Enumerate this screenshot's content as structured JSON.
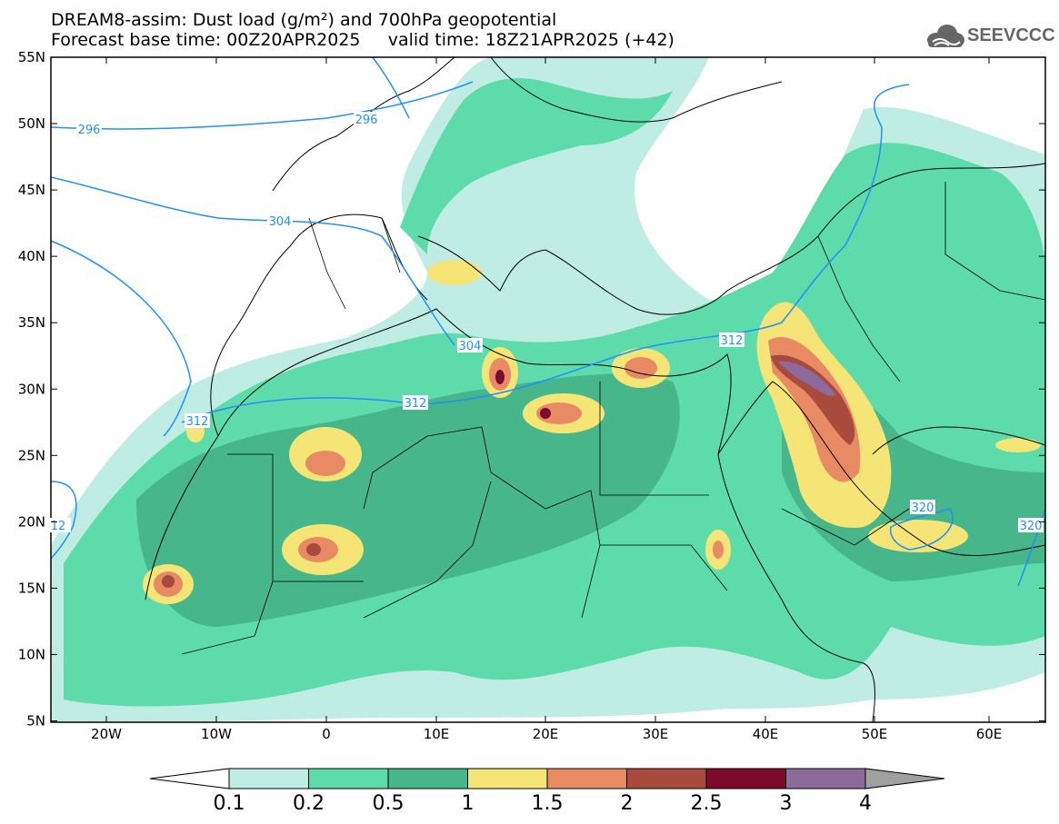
{
  "header": {
    "title_line1": "DREAM8-assim: Dust load (g/m²) and 700hPa geopotential",
    "title_line2": "Forecast base time: 00Z20APR2025     valid time: 18Z21APR2025 (+42)",
    "logo_text": "SEEVCCC",
    "logo_icon": "cloud-icon"
  },
  "map": {
    "lon_labels": [
      "20W",
      "10W",
      "0",
      "10E",
      "20E",
      "30E",
      "40E",
      "50E",
      "60E"
    ],
    "lat_labels": [
      "55N",
      "50N",
      "45N",
      "40N",
      "35N",
      "30N",
      "25N",
      "20N",
      "15N",
      "10N",
      "5N"
    ],
    "contour_labels": [
      "296",
      "296",
      "304",
      "304",
      "312",
      "312",
      "312",
      "320",
      "320",
      "12"
    ],
    "colors": {
      "land_bg": "#ffffff",
      "border": "#000000",
      "geopotential": "#1e90ff"
    }
  },
  "legend": {
    "labels": [
      "0.1",
      "0.2",
      "0.5",
      "1",
      "1.5",
      "2",
      "2.5",
      "3",
      "4"
    ],
    "colors": [
      "#c0ede3",
      "#5ddbaa",
      "#47b68a",
      "#f5e577",
      "#e88a64",
      "#a84a3e",
      "#7c0b2e",
      "#8c6a9c",
      "#a0a0a0"
    ],
    "under_color": "#ffffff",
    "over_color": "#a0a0a0"
  }
}
